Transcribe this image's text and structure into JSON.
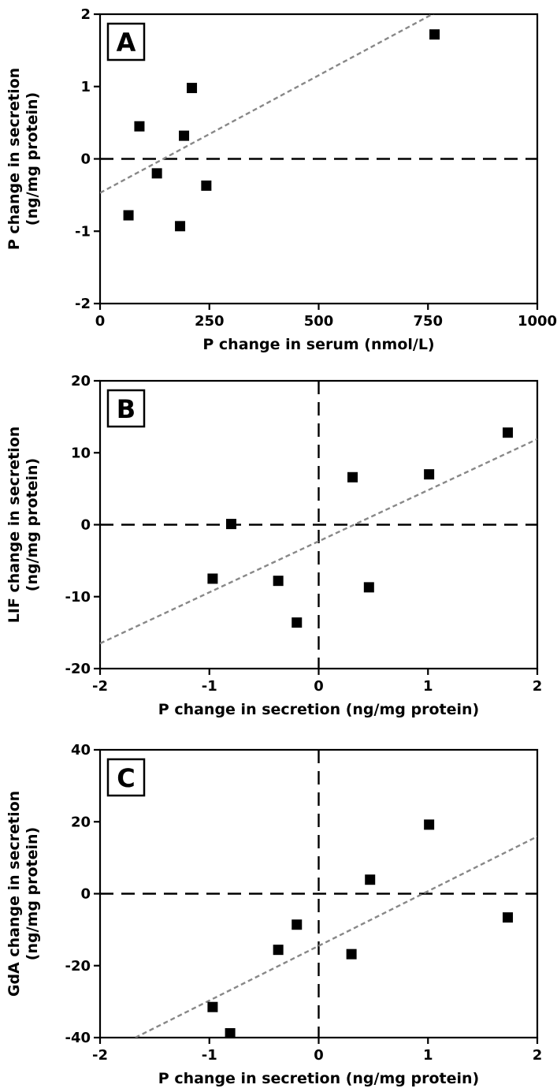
{
  "chart_data": [
    {
      "type": "scatter",
      "panel_label": "A",
      "xlabel": "P change in serum (nmol/L)",
      "ylabel_lines": [
        "P change in secretion",
        "(ng/mg protein)"
      ],
      "xlim": [
        0,
        1000
      ],
      "ylim": [
        -2,
        2
      ],
      "xticks": [
        0,
        250,
        500,
        750,
        1000
      ],
      "yticks": [
        -2,
        -1,
        0,
        1,
        2
      ],
      "zero_lines": {
        "horizontal": true,
        "vertical": false
      },
      "points": [
        {
          "x": 65,
          "y": -0.78
        },
        {
          "x": 90,
          "y": 0.45
        },
        {
          "x": 130,
          "y": -0.2
        },
        {
          "x": 183,
          "y": -0.93
        },
        {
          "x": 192,
          "y": 0.32
        },
        {
          "x": 210,
          "y": 0.98
        },
        {
          "x": 243,
          "y": -0.37
        },
        {
          "x": 765,
          "y": 1.72
        }
      ],
      "fit_line": {
        "slope": 0.00325,
        "intercept": -0.47
      }
    },
    {
      "type": "scatter",
      "panel_label": "B",
      "xlabel": "P change in secretion (ng/mg protein)",
      "ylabel_lines": [
        "LIF change in secretion",
        "(ng/mg protein)"
      ],
      "xlim": [
        -2,
        2
      ],
      "ylim": [
        -20,
        20
      ],
      "xticks": [
        -2,
        -1,
        0,
        1,
        2
      ],
      "yticks": [
        -20,
        -10,
        0,
        10,
        20
      ],
      "zero_lines": {
        "horizontal": true,
        "vertical": true
      },
      "points": [
        {
          "x": -0.97,
          "y": -7.5
        },
        {
          "x": -0.8,
          "y": 0.1
        },
        {
          "x": -0.37,
          "y": -7.8
        },
        {
          "x": -0.2,
          "y": -13.6
        },
        {
          "x": 0.31,
          "y": 6.6
        },
        {
          "x": 0.46,
          "y": -8.7
        },
        {
          "x": 1.01,
          "y": 7.0
        },
        {
          "x": 1.73,
          "y": 12.8
        }
      ],
      "fit_line": {
        "slope": 7.1,
        "intercept": -2.3
      }
    },
    {
      "type": "scatter",
      "panel_label": "C",
      "xlabel": "P change in secretion (ng/mg protein)",
      "ylabel_lines": [
        "GdA change in secretion",
        "(ng/mg protein)"
      ],
      "xlim": [
        -2,
        2
      ],
      "ylim": [
        -40,
        40
      ],
      "xticks": [
        -2,
        -1,
        0,
        1,
        2
      ],
      "yticks": [
        -40,
        -20,
        0,
        20,
        40
      ],
      "zero_lines": {
        "horizontal": true,
        "vertical": true
      },
      "points": [
        {
          "x": -0.97,
          "y": -31.5
        },
        {
          "x": -0.81,
          "y": -38.8
        },
        {
          "x": -0.37,
          "y": -15.6
        },
        {
          "x": -0.2,
          "y": -8.6
        },
        {
          "x": 0.3,
          "y": -16.8
        },
        {
          "x": 0.47,
          "y": 3.9
        },
        {
          "x": 1.01,
          "y": 19.2
        },
        {
          "x": 1.73,
          "y": -6.6
        }
      ],
      "fit_line": {
        "slope": 15.2,
        "intercept": -14.5
      }
    }
  ]
}
